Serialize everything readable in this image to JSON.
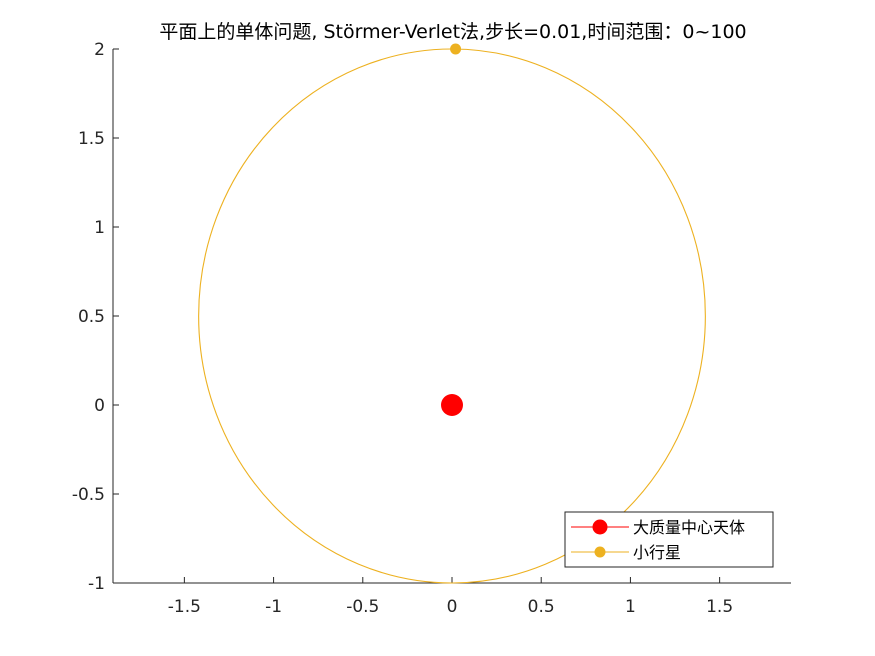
{
  "chart_data": {
    "type": "line",
    "title": "平面上的单体问题, Störmer-Verlet法,步长=0.01,时间范围：0~100",
    "xlabel": "",
    "ylabel": "",
    "xlim": [
      -1.9,
      1.9
    ],
    "ylim": [
      -1,
      2
    ],
    "x_ticks": [
      -1.5,
      -1,
      -0.5,
      0,
      0.5,
      1,
      1.5
    ],
    "x_tick_labels": [
      "-1.5",
      "-1",
      "-0.5",
      "0",
      "0.5",
      "1",
      "1.5"
    ],
    "y_ticks": [
      -1,
      -0.5,
      0,
      0.5,
      1,
      1.5,
      2
    ],
    "y_tick_labels": [
      "-1",
      "-0.5",
      "0",
      "0.5",
      "1",
      "1.5",
      "2"
    ],
    "grid": false,
    "legend_position": "bottom-right",
    "series": [
      {
        "name": "大质量中心天体",
        "color": "#ff0000",
        "marker": "circle",
        "x": [
          0
        ],
        "y": [
          0
        ]
      },
      {
        "name": "小行星",
        "color": "#edb120",
        "marker": "circle",
        "x": [
          0.02
        ],
        "y": [
          2
        ],
        "orbit": {
          "center": [
            0,
            0.5
          ],
          "radius_x": 1.42,
          "radius_y": 1.5
        }
      }
    ]
  }
}
